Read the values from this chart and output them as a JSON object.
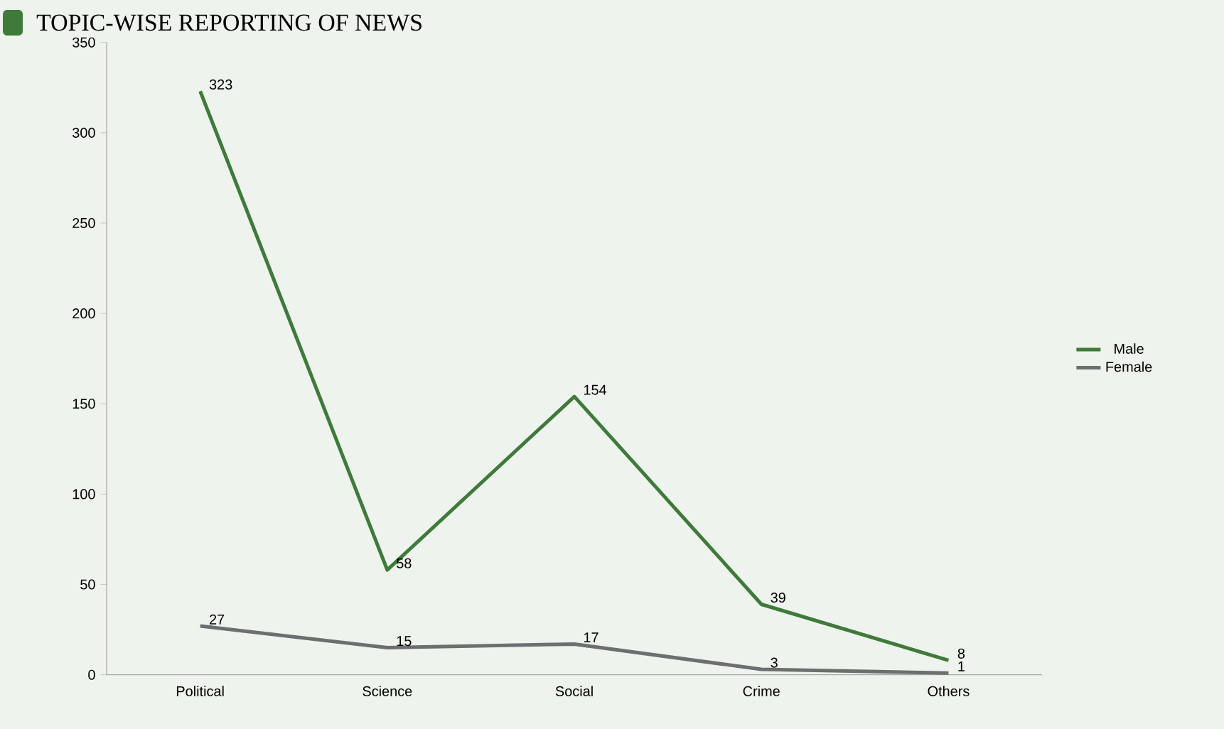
{
  "chart_data": {
    "type": "line",
    "title": "TOPIC-WISE REPORTING OF NEWS",
    "categories": [
      "Political",
      "Science",
      "Social",
      "Crime",
      "Others"
    ],
    "series": [
      {
        "name": "Male",
        "color": "#3f7a3a",
        "values": [
          323,
          58,
          154,
          39,
          8
        ]
      },
      {
        "name": "Female",
        "color": "#6d6e70",
        "values": [
          27,
          15,
          17,
          3,
          1
        ]
      }
    ],
    "ylim": [
      0,
      350
    ],
    "yticks": [
      0,
      50,
      100,
      150,
      200,
      250,
      300,
      350
    ],
    "data_labels": true,
    "legend": "right",
    "grid": false,
    "marker": "none",
    "line_style": "solid"
  }
}
